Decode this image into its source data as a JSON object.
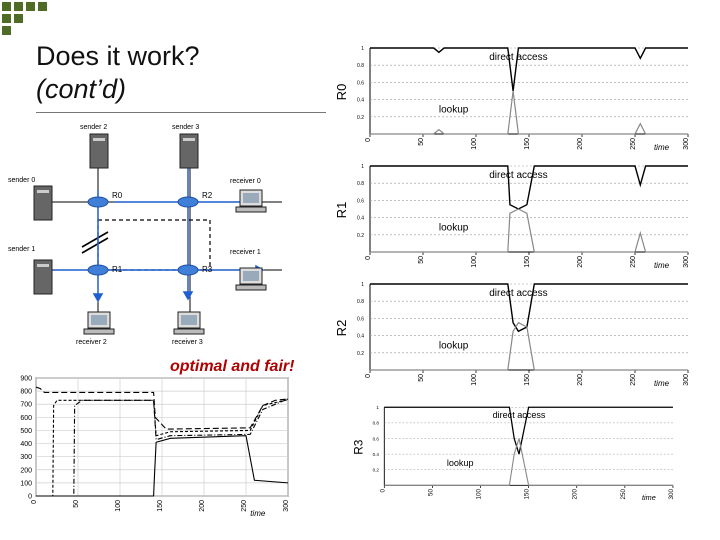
{
  "slide": {
    "title": "Does it work?",
    "subtitle": "(cont’d)",
    "tagline": "optimal and fair!"
  },
  "network": {
    "senders": [
      "sender 0",
      "sender 1",
      "sender 2",
      "sender 3"
    ],
    "receivers": [
      "receiver 0",
      "receiver 1",
      "receiver 2",
      "receiver 3"
    ],
    "routers": [
      "R0",
      "R1",
      "R2",
      "R3"
    ]
  },
  "colors": {
    "accent": "#b00000",
    "path_blue": "#1f5fd0",
    "curve": "#000000",
    "lookup_curve": "#888888",
    "deco_square": "#4f6b26"
  },
  "chart_data": [
    {
      "type": "line",
      "xlabel": "time",
      "ylabel": "",
      "xlim": [
        0,
        300
      ],
      "ylim": [
        0,
        900
      ],
      "xticks": [
        0,
        50,
        100,
        150,
        200,
        250,
        300
      ],
      "yticks": [
        0,
        100,
        200,
        300,
        400,
        500,
        600,
        700,
        800,
        900
      ],
      "grid": true,
      "series": [
        {
          "x": [
            0,
            5,
            10,
            25,
            140,
            142,
            155,
            255,
            270,
            285,
            300
          ],
          "values": [
            830,
            820,
            790,
            790,
            790,
            600,
            510,
            520,
            690,
            730,
            740
          ]
        },
        {
          "x": [
            0,
            20,
            21,
            25,
            60,
            140,
            143,
            160,
            255,
            270,
            300
          ],
          "values": [
            0,
            0,
            690,
            730,
            730,
            730,
            460,
            490,
            500,
            690,
            735
          ]
        },
        {
          "x": [
            0,
            45,
            46,
            55,
            140,
            143,
            160,
            255,
            270,
            300
          ],
          "values": [
            0,
            0,
            690,
            730,
            730,
            430,
            460,
            470,
            660,
            740
          ]
        },
        {
          "x": [
            0,
            140,
            141,
            143,
            160,
            250,
            260,
            300
          ],
          "values": [
            0,
            0,
            150,
            410,
            440,
            460,
            120,
            100
          ]
        }
      ]
    },
    {
      "type": "line",
      "panel_label": "R0",
      "xlabel": "time",
      "xlim": [
        0,
        300
      ],
      "ylim": [
        0,
        1
      ],
      "xticks": [
        0,
        50,
        100,
        150,
        200,
        250,
        300
      ],
      "yticks": [
        0.2,
        0.4,
        0.6,
        0.8,
        1
      ],
      "annotations": [
        "direct access",
        "lookup"
      ],
      "series": [
        {
          "name": "direct access",
          "x": [
            0,
            60,
            65,
            70,
            130,
            135,
            140,
            250,
            255,
            260,
            300
          ],
          "values": [
            1,
            1,
            0.95,
            1,
            1,
            0.5,
            1,
            1,
            0.88,
            1,
            1
          ]
        },
        {
          "name": "lookup",
          "x": [
            0,
            60,
            65,
            70,
            130,
            135,
            140,
            250,
            255,
            260,
            300
          ],
          "values": [
            0,
            0,
            0.05,
            0,
            0,
            0.5,
            0,
            0,
            0.12,
            0,
            0
          ]
        }
      ]
    },
    {
      "type": "line",
      "panel_label": "R1",
      "xlabel": "time",
      "xlim": [
        0,
        300
      ],
      "ylim": [
        0,
        1
      ],
      "xticks": [
        0,
        50,
        100,
        150,
        200,
        250,
        300
      ],
      "yticks": [
        0.2,
        0.4,
        0.6,
        0.8,
        1
      ],
      "annotations": [
        "direct access",
        "lookup"
      ],
      "series": [
        {
          "name": "direct access",
          "x": [
            0,
            130,
            132,
            140,
            148,
            155,
            250,
            255,
            260,
            300
          ],
          "values": [
            1,
            1,
            0.55,
            0.5,
            0.55,
            1,
            1,
            0.78,
            1,
            1
          ]
        },
        {
          "name": "lookup",
          "x": [
            0,
            130,
            132,
            140,
            148,
            155,
            250,
            255,
            260,
            300
          ],
          "values": [
            0,
            0,
            0.45,
            0.5,
            0.45,
            0,
            0,
            0.22,
            0,
            0
          ]
        }
      ]
    },
    {
      "type": "line",
      "panel_label": "R2",
      "xlabel": "time",
      "xlim": [
        0,
        300
      ],
      "ylim": [
        0,
        1
      ],
      "xticks": [
        0,
        50,
        100,
        150,
        200,
        250,
        300
      ],
      "yticks": [
        0.2,
        0.4,
        0.6,
        0.8,
        1
      ],
      "annotations": [
        "direct access",
        "lookup"
      ],
      "series": [
        {
          "name": "direct access",
          "x": [
            0,
            130,
            135,
            140,
            148,
            155,
            300
          ],
          "values": [
            1,
            1,
            0.55,
            0.45,
            0.5,
            1,
            1
          ]
        },
        {
          "name": "lookup",
          "x": [
            0,
            130,
            135,
            140,
            148,
            155,
            300
          ],
          "values": [
            0,
            0,
            0.45,
            0.55,
            0.5,
            0,
            0
          ]
        }
      ]
    },
    {
      "type": "line",
      "panel_label": "R3",
      "xlabel": "time",
      "xlim": [
        0,
        300
      ],
      "ylim": [
        0,
        1
      ],
      "xticks": [
        0,
        50,
        100,
        150,
        200,
        250,
        300
      ],
      "yticks": [
        0.2,
        0.4,
        0.6,
        0.8,
        1
      ],
      "annotations": [
        "direct access",
        "lookup"
      ],
      "series": [
        {
          "name": "direct access",
          "x": [
            0,
            130,
            135,
            140,
            145,
            150,
            300
          ],
          "values": [
            1,
            1,
            0.6,
            0.4,
            0.7,
            1,
            1
          ]
        },
        {
          "name": "lookup",
          "x": [
            0,
            130,
            135,
            140,
            145,
            150,
            300
          ],
          "values": [
            0,
            0,
            0.4,
            0.6,
            0.3,
            0,
            0
          ]
        }
      ]
    }
  ]
}
